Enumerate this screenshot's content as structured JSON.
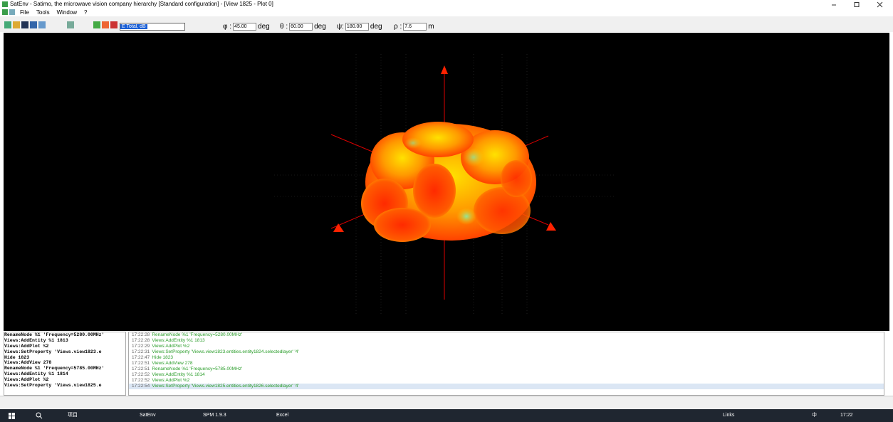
{
  "window": {
    "title": "SatEnv - Satimo, the microwave vision company hierarchy [Standard configuration] - [View 1825 - Plot 0]",
    "menu": [
      "File",
      "Tools",
      "Window",
      "?"
    ]
  },
  "toolbar": {
    "layer": "E Total, dB",
    "fields": [
      {
        "symbol": "φ :",
        "value": "45.00",
        "unit": "deg"
      },
      {
        "symbol": "θ :",
        "value": "60.00",
        "unit": "deg"
      },
      {
        "symbol": "ψ:",
        "value": "180.00",
        "unit": "deg"
      },
      {
        "symbol": "ρ :",
        "value": "7.6",
        "unit": "m"
      }
    ]
  },
  "script_console": [
    "RenameNode %1 'Frequency=5280.00MHz'",
    "Views:AddEntity %1 1813",
    "Views:AddPlot %2",
    "Views:SetProperty 'Views.view1823.e",
    "Hide 1823",
    "Views:AddView 278",
    "RenameNode %1 'Frequency=5785.00MHz'",
    "Views:AddEntity %1 1814",
    "Views:AddPlot %2",
    "Views:SetProperty 'Views.view1825.e"
  ],
  "log": [
    {
      "time": "17:22:28",
      "text": "RenameNode %1 'Frequency=5280.00MHz'"
    },
    {
      "time": "17:22:28",
      "text": "Views:AddEntity %1 1813"
    },
    {
      "time": "17:22:29",
      "text": "Views:AddPlot %2"
    },
    {
      "time": "17:22:31",
      "text": "Views:SetProperty 'Views.view1823.entities.entity1824.selectedlayer' '4'"
    },
    {
      "time": "17:22:47",
      "text": "Hide 1823"
    },
    {
      "time": "17:22:51",
      "text": "Views:AddView 278"
    },
    {
      "time": "17:22:51",
      "text": "RenameNode %1 'Frequency=5785.00MHz'"
    },
    {
      "time": "17:22:52",
      "text": "Views:AddEntity %1 1814"
    },
    {
      "time": "17:22:52",
      "text": "Views:AddPlot %2"
    },
    {
      "time": "17:22:54",
      "text": "Views:SetProperty 'Views.view1825.entities.entity1826.selectedlayer' '4'"
    }
  ],
  "taskbar": {
    "apps": [
      "项目",
      "SatEnv",
      "SPM 1.9.3",
      "Excel"
    ],
    "tray": [
      "Links",
      "中"
    ],
    "clock": "17:22"
  }
}
